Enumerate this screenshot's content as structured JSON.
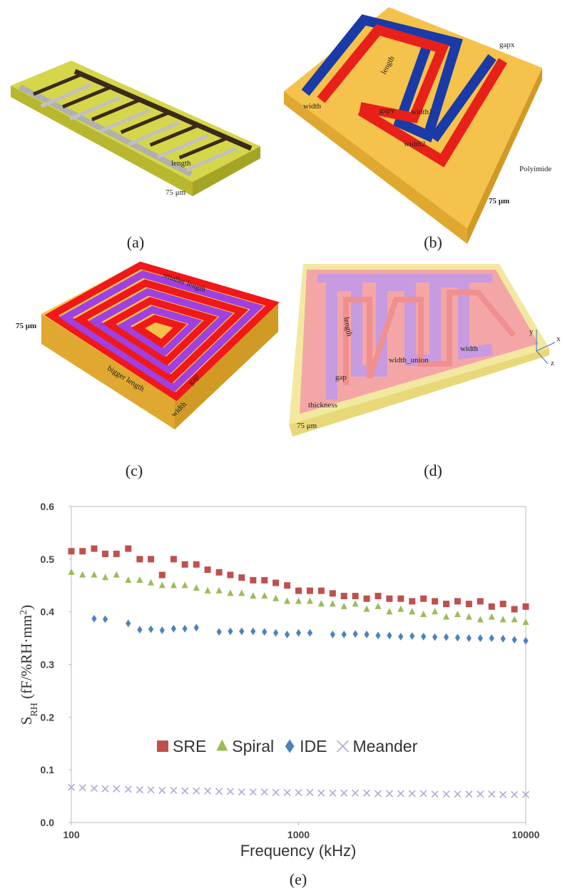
{
  "panels": [
    {
      "caption": "(a)",
      "labels": [
        "length",
        "75 μm"
      ]
    },
    {
      "caption": "(b)",
      "labels": [
        "width",
        "length",
        "gapy",
        "width1",
        "width2",
        "gapx",
        "Polyimide",
        "75 μm"
      ]
    },
    {
      "caption": "(c)",
      "labels": [
        "smaller length",
        "75 μm",
        "bigger length",
        "gap",
        "width"
      ]
    },
    {
      "caption": "(d)",
      "labels": [
        "length",
        "width_union",
        "width",
        "gap",
        "thickness",
        "75 μm",
        "x",
        "y",
        "z"
      ]
    }
  ],
  "chart_data": {
    "type": "scatter",
    "caption": "(e)",
    "x_label": "Frequency (kHz)",
    "y_label": {
      "main": "S",
      "sub": "RH",
      "unit": " (fF/%RH·mm",
      "sup": "2",
      "end": ")"
    },
    "xlog": true,
    "xlim": [
      100,
      10000
    ],
    "xticks": [
      100,
      1000,
      10000
    ],
    "ylim": [
      0,
      0.6
    ],
    "yticks": [
      {
        "value": 0,
        "label": "0.0"
      },
      0.1,
      0.2,
      0.3,
      0.4,
      0.5,
      0.6
    ],
    "grid": false,
    "legend": "center",
    "x": [
      100,
      112,
      126,
      141,
      158,
      178,
      200,
      224,
      251,
      282,
      316,
      355,
      398,
      447,
      501,
      562,
      631,
      708,
      794,
      891,
      1000,
      1122,
      1259,
      1413,
      1585,
      1778,
      1995,
      2239,
      2512,
      2818,
      3162,
      3548,
      3981,
      4467,
      5012,
      5623,
      6310,
      7079,
      7943,
      8913,
      10000
    ],
    "series": [
      {
        "name": "SRE",
        "color": "#c0504d",
        "marker": "square",
        "values": [
          0.515,
          0.515,
          0.52,
          0.51,
          0.51,
          0.52,
          0.5,
          0.5,
          0.47,
          0.5,
          0.49,
          0.49,
          0.48,
          0.475,
          0.47,
          0.465,
          0.46,
          0.46,
          0.455,
          0.45,
          0.44,
          0.44,
          0.44,
          0.435,
          0.43,
          0.43,
          0.425,
          0.43,
          0.425,
          0.425,
          0.42,
          0.425,
          0.42,
          0.415,
          0.42,
          0.415,
          0.42,
          0.41,
          0.415,
          0.405,
          0.41
        ]
      },
      {
        "name": "Spiral",
        "color": "#9bbb59",
        "marker": "triangle",
        "values": [
          0.475,
          0.47,
          0.47,
          0.465,
          0.47,
          0.46,
          0.46,
          0.455,
          0.45,
          0.45,
          0.45,
          0.445,
          0.44,
          0.44,
          0.435,
          0.435,
          0.43,
          0.43,
          0.425,
          0.42,
          0.42,
          0.42,
          0.415,
          0.415,
          0.41,
          0.415,
          0.405,
          0.41,
          0.4,
          0.405,
          0.4,
          0.395,
          0.4,
          0.39,
          0.395,
          0.39,
          0.385,
          0.39,
          0.385,
          0.385,
          0.38
        ]
      },
      {
        "name": "IDE",
        "color": "#4f81bd",
        "marker": "diamond",
        "values": [
          null,
          null,
          0.387,
          0.386,
          null,
          0.378,
          0.366,
          0.367,
          0.365,
          0.368,
          0.368,
          0.37,
          null,
          0.362,
          0.363,
          0.363,
          0.363,
          0.362,
          0.36,
          0.357,
          0.36,
          0.36,
          null,
          0.357,
          0.357,
          0.358,
          0.357,
          0.355,
          0.355,
          0.353,
          0.354,
          0.353,
          0.352,
          0.352,
          0.351,
          0.35,
          0.35,
          0.35,
          0.349,
          0.347,
          0.345
        ]
      },
      {
        "name": "Meander",
        "color": "#b4a7d6",
        "marker": "x",
        "values": [
          0.067,
          0.066,
          0.065,
          0.064,
          0.064,
          0.063,
          0.062,
          0.062,
          0.061,
          0.061,
          0.06,
          0.06,
          0.06,
          0.059,
          0.059,
          0.058,
          0.058,
          0.058,
          0.057,
          0.057,
          0.057,
          0.057,
          0.056,
          0.056,
          0.056,
          0.056,
          0.056,
          0.055,
          0.055,
          0.055,
          0.055,
          0.055,
          0.054,
          0.054,
          0.054,
          0.054,
          0.054,
          0.054,
          0.053,
          0.053,
          0.053
        ]
      }
    ]
  }
}
